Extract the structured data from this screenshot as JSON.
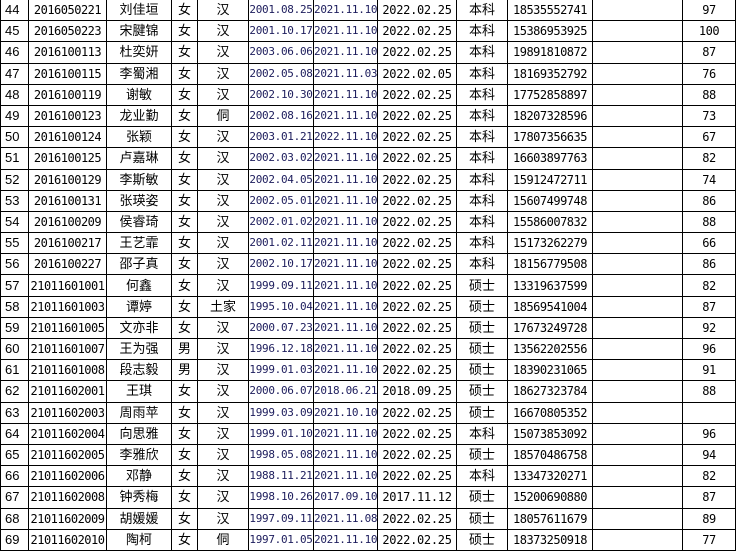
{
  "rows": [
    {
      "no": "44",
      "id": "2016050221",
      "name": "刘佳垣",
      "gender": "女",
      "ethnicity": "汉",
      "birth": "2001.08.25",
      "date2": "2021.11.10",
      "date3": "2022.02.25",
      "degree": "本科",
      "phone": "18535552741",
      "note": "",
      "score": "97"
    },
    {
      "no": "45",
      "id": "2016050223",
      "name": "宋腱锦",
      "gender": "女",
      "ethnicity": "汉",
      "birth": "2001.10.17",
      "date2": "2021.11.10",
      "date3": "2022.02.25",
      "degree": "本科",
      "phone": "15386953925",
      "note": "",
      "score": "100"
    },
    {
      "no": "46",
      "id": "2016100113",
      "name": "杜奕妍",
      "gender": "女",
      "ethnicity": "汉",
      "birth": "2003.06.06",
      "date2": "2021.11.10",
      "date3": "2022.02.25",
      "degree": "本科",
      "phone": "19891810872",
      "note": "",
      "score": "87"
    },
    {
      "no": "47",
      "id": "2016100115",
      "name": "李蜀湘",
      "gender": "女",
      "ethnicity": "汉",
      "birth": "2002.05.08",
      "date2": "2021.11.03",
      "date3": "2022.02.05",
      "degree": "本科",
      "phone": "18169352792",
      "note": "",
      "score": "76"
    },
    {
      "no": "48",
      "id": "2016100119",
      "name": "谢敏",
      "gender": "女",
      "ethnicity": "汉",
      "birth": "2002.10.30",
      "date2": "2021.11.10",
      "date3": "2022.02.25",
      "degree": "本科",
      "phone": "17752858897",
      "note": "",
      "score": "88"
    },
    {
      "no": "49",
      "id": "2016100123",
      "name": "龙业勤",
      "gender": "女",
      "ethnicity": "侗",
      "birth": "2002.08.16",
      "date2": "2021.11.10",
      "date3": "2022.02.25",
      "degree": "本科",
      "phone": "18207328596",
      "note": "",
      "score": "73"
    },
    {
      "no": "50",
      "id": "2016100124",
      "name": "张颖",
      "gender": "女",
      "ethnicity": "汉",
      "birth": "2003.01.21",
      "date2": "2022.11.10",
      "date3": "2022.02.25",
      "degree": "本科",
      "phone": "17807356635",
      "note": "",
      "score": "67"
    },
    {
      "no": "51",
      "id": "2016100125",
      "name": "卢嘉琳",
      "gender": "女",
      "ethnicity": "汉",
      "birth": "2002.03.02",
      "date2": "2021.11.10",
      "date3": "2022.02.25",
      "degree": "本科",
      "phone": "16603897763",
      "note": "",
      "score": "82"
    },
    {
      "no": "52",
      "id": "2016100129",
      "name": "李斯敏",
      "gender": "女",
      "ethnicity": "汉",
      "birth": "2002.04.05",
      "date2": "2021.11.10",
      "date3": "2022.02.25",
      "degree": "本科",
      "phone": "15912472711",
      "note": "",
      "score": "74"
    },
    {
      "no": "53",
      "id": "2016100131",
      "name": "张瑛姿",
      "gender": "女",
      "ethnicity": "汉",
      "birth": "2002.05.01",
      "date2": "2021.11.10",
      "date3": "2022.02.25",
      "degree": "本科",
      "phone": "15607499748",
      "note": "",
      "score": "86"
    },
    {
      "no": "54",
      "id": "2016100209",
      "name": "侯睿琦",
      "gender": "女",
      "ethnicity": "汉",
      "birth": "2002.01.02",
      "date2": "2021.11.10",
      "date3": "2022.02.25",
      "degree": "本科",
      "phone": "15586007832",
      "note": "",
      "score": "88"
    },
    {
      "no": "55",
      "id": "2016100217",
      "name": "王艺霏",
      "gender": "女",
      "ethnicity": "汉",
      "birth": "2001.02.11",
      "date2": "2021.11.10",
      "date3": "2022.02.25",
      "degree": "本科",
      "phone": "15173262279",
      "note": "",
      "score": "66"
    },
    {
      "no": "56",
      "id": "2016100227",
      "name": "邵子真",
      "gender": "女",
      "ethnicity": "汉",
      "birth": "2002.10.17",
      "date2": "2021.11.10",
      "date3": "2022.02.25",
      "degree": "本科",
      "phone": "18156779508",
      "note": "",
      "score": "86"
    },
    {
      "no": "57",
      "id": "21011601001",
      "name": "何鑫",
      "gender": "女",
      "ethnicity": "汉",
      "birth": "1999.09.11",
      "date2": "2021.11.10",
      "date3": "2022.02.25",
      "degree": "硕士",
      "phone": "13319637599",
      "note": "",
      "score": "82"
    },
    {
      "no": "58",
      "id": "21011601003",
      "name": "谭婷",
      "gender": "女",
      "ethnicity": "土家",
      "birth": "1995.10.04",
      "date2": "2021.11.10",
      "date3": "2022.02.25",
      "degree": "硕士",
      "phone": "18569541004",
      "note": "",
      "score": "87"
    },
    {
      "no": "59",
      "id": "21011601005",
      "name": "文亦非",
      "gender": "女",
      "ethnicity": "汉",
      "birth": "2000.07.23",
      "date2": "2021.11.10",
      "date3": "2022.02.25",
      "degree": "硕士",
      "phone": "17673249728",
      "note": "",
      "score": "92"
    },
    {
      "no": "60",
      "id": "21011601007",
      "name": "王为强",
      "gender": "男",
      "ethnicity": "汉",
      "birth": "1996.12.18",
      "date2": "2021.11.10",
      "date3": "2022.02.25",
      "degree": "硕士",
      "phone": "13562202556",
      "note": "",
      "score": "96"
    },
    {
      "no": "61",
      "id": "21011601008",
      "name": "段志毅",
      "gender": "男",
      "ethnicity": "汉",
      "birth": "1999.01.03",
      "date2": "2021.11.10",
      "date3": "2022.02.25",
      "degree": "硕士",
      "phone": "18390231065",
      "note": "",
      "score": "91"
    },
    {
      "no": "62",
      "id": "21011602001",
      "name": "王琪",
      "gender": "女",
      "ethnicity": "汉",
      "birth": "2000.06.07",
      "date2": "2018.06.21",
      "date3": "2018.09.25",
      "degree": "硕士",
      "phone": "18627323784",
      "note": "",
      "score": "88"
    },
    {
      "no": "63",
      "id": "21011602003",
      "name": "周雨苹",
      "gender": "女",
      "ethnicity": "汉",
      "birth": "1999.03.09",
      "date2": "2021.10.10",
      "date3": "2022.02.25",
      "degree": "硕士",
      "phone": "16670805352",
      "note": "",
      "score": ""
    },
    {
      "no": "64",
      "id": "21011602004",
      "name": "向思雅",
      "gender": "女",
      "ethnicity": "汉",
      "birth": "1999.01.10",
      "date2": "2021.11.10",
      "date3": "2022.02.25",
      "degree": "本科",
      "phone": "15073853092",
      "note": "",
      "score": "96"
    },
    {
      "no": "65",
      "id": "21011602005",
      "name": "李雅欣",
      "gender": "女",
      "ethnicity": "汉",
      "birth": "1998.05.08",
      "date2": "2021.11.10",
      "date3": "2022.02.25",
      "degree": "硕士",
      "phone": "18570486758",
      "note": "",
      "score": "94"
    },
    {
      "no": "66",
      "id": "21011602006",
      "name": "邓静",
      "gender": "女",
      "ethnicity": "汉",
      "birth": "1988.11.21",
      "date2": "2021.11.10",
      "date3": "2022.02.25",
      "degree": "本科",
      "phone": "13347320271",
      "note": "",
      "score": "82"
    },
    {
      "no": "67",
      "id": "21011602008",
      "name": "钟秀梅",
      "gender": "女",
      "ethnicity": "汉",
      "birth": "1998.10.26",
      "date2": "2017.09.10",
      "date3": "2017.11.12",
      "degree": "硕士",
      "phone": "15200690880",
      "note": "",
      "score": "87"
    },
    {
      "no": "68",
      "id": "21011602009",
      "name": "胡媛媛",
      "gender": "女",
      "ethnicity": "汉",
      "birth": "1997.09.11",
      "date2": "2021.11.08",
      "date3": "2022.02.25",
      "degree": "硕士",
      "phone": "18057611679",
      "note": "",
      "score": "89"
    },
    {
      "no": "69",
      "id": "21011602010",
      "name": "陶柯",
      "gender": "女",
      "ethnicity": "侗",
      "birth": "1997.01.05",
      "date2": "2021.11.10",
      "date3": "2022.02.25",
      "degree": "硕士",
      "phone": "18373250918",
      "note": "",
      "score": "77"
    }
  ]
}
